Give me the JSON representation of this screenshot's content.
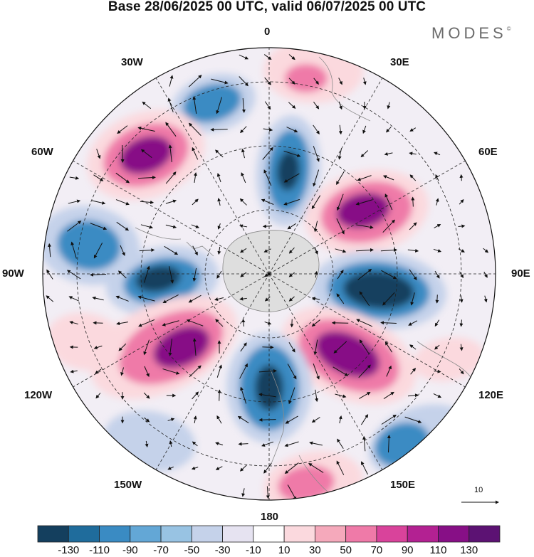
{
  "title": "Base 28/06/2025 00 UTC, valid 06/07/2025 00 UTC",
  "brand": {
    "name": "MODES",
    "mark": "©"
  },
  "longitude_labels": {
    "lon_0": "0",
    "lon_30e": "30E",
    "lon_60e": "60E",
    "lon_90e": "90E",
    "lon_120e": "120E",
    "lon_150e": "150E",
    "lon_180": "180",
    "lon_150w": "150W",
    "lon_120w": "120W",
    "lon_90w": "90W",
    "lon_60w": "60W",
    "lon_30w": "30W"
  },
  "vector_reference": {
    "value": "10"
  },
  "colorbar": {
    "colors": [
      "#143f5e",
      "#1f6c9c",
      "#3a8bc3",
      "#63a7d6",
      "#98c3e3",
      "#c5d2ea",
      "#e6e3f1",
      "#ffffff",
      "#fbd9de",
      "#f5a9bb",
      "#ef7aa8",
      "#d9439b",
      "#b32192",
      "#870f86",
      "#5c1273"
    ],
    "labels": [
      "-130",
      "-110",
      "-90",
      "-70",
      "-50",
      "-30",
      "-10",
      "10",
      "30",
      "50",
      "70",
      "90",
      "110",
      "130"
    ]
  },
  "map_colors": {
    "neg_strong": "#143f5e",
    "neg_mid": "#3a8bc3",
    "neg_weak": "#c5d2ea",
    "pos_weak": "#fbd9de",
    "pos_mid": "#ef7aa8",
    "pos_strong": "#870f86",
    "land": "#d9d9d9"
  }
}
